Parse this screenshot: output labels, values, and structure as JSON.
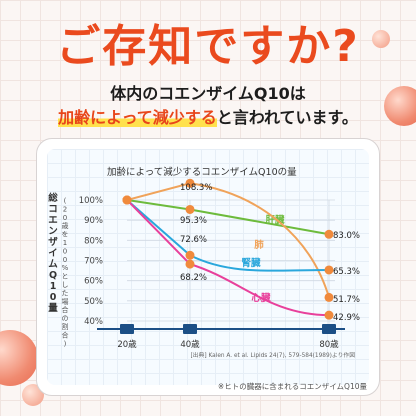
{
  "headline": "ご存知ですか?",
  "subtitle_line1": "体内のコエンザイムQ10は",
  "subtitle_highlight": "加齢によって減少する",
  "subtitle_rest": "と言われています。",
  "colors": {
    "accent": "#ea4a1e",
    "highlight": "#ffe14d",
    "liver": "#6dbb3c",
    "lung": "#f0a35a",
    "kidney": "#2aa7dc",
    "heart": "#e8409b",
    "marker": "#f08a3c"
  },
  "chart_data": {
    "type": "line",
    "title": "加齢によって減少するコエンザイムQ10の量",
    "ylabel": "総コエンザイムQ10量",
    "ylabel_sub": "(20歳を100%とした場合の割合)",
    "x_categories": [
      "20歳",
      "40歳",
      "80歳"
    ],
    "y_ticks": [
      "100%",
      "90%",
      "80%",
      "70%",
      "60%",
      "50%",
      "40%"
    ],
    "ylim": [
      40,
      100
    ],
    "series": [
      {
        "name": "肝臓",
        "color": "#6dbb3c",
        "x": [
          20,
          40,
          80
        ],
        "values": [
          100,
          95.3,
          83.0
        ],
        "labels": [
          "",
          "95.3%",
          "83.0%"
        ]
      },
      {
        "name": "肺",
        "color": "#f0a35a",
        "x": [
          20,
          40,
          80
        ],
        "values": [
          100,
          108.3,
          51.7
        ],
        "labels": [
          "",
          "108.3%",
          "51.7%"
        ]
      },
      {
        "name": "腎臓",
        "color": "#2aa7dc",
        "x": [
          20,
          40,
          80
        ],
        "values": [
          100,
          72.6,
          65.3
        ],
        "labels": [
          "",
          "72.6%",
          "65.3%"
        ]
      },
      {
        "name": "心臓",
        "color": "#e8409b",
        "x": [
          20,
          40,
          80
        ],
        "values": [
          100,
          68.2,
          42.9
        ],
        "labels": [
          "",
          "68.2%",
          "42.9%"
        ]
      }
    ],
    "source": "[出典] Kalen A. et al. Lipids 24(7), 579-584(1989)より作図",
    "footnote": "※ヒトの臓器に含まれるコエンザイムQ10量"
  }
}
